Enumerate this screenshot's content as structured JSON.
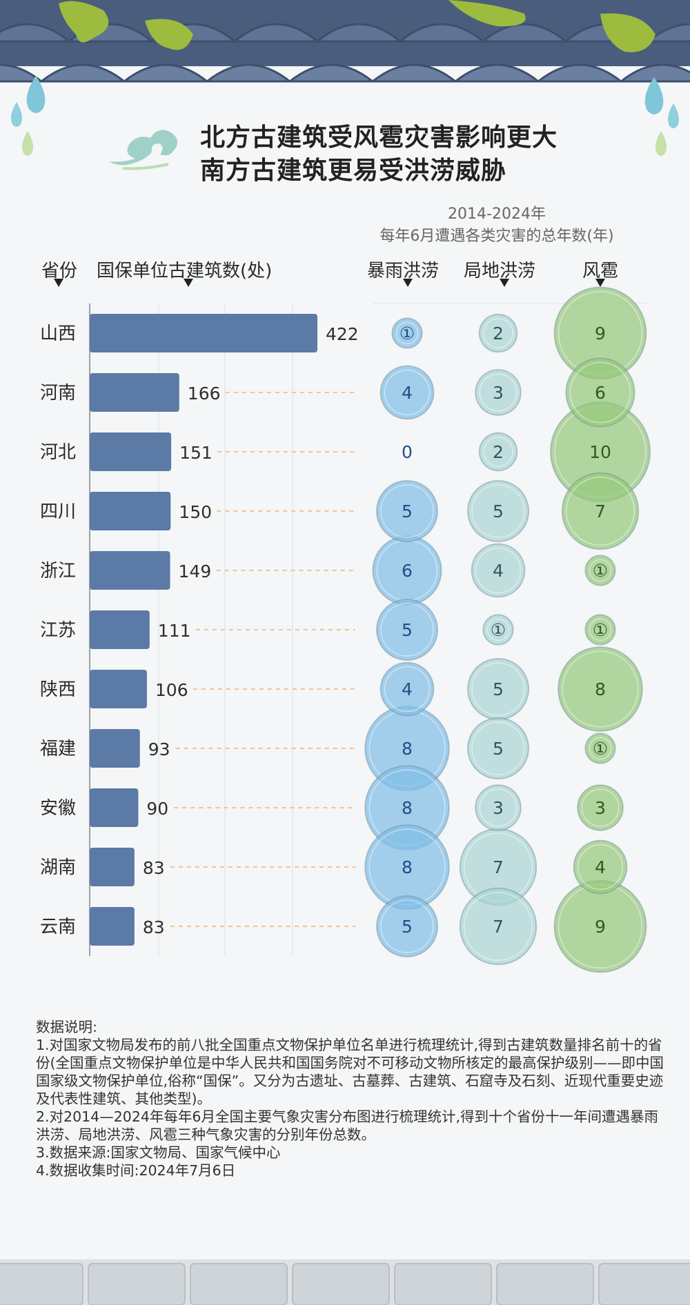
{
  "title_lines": [
    "北方古建筑受风雹灾害影响更大",
    "南方古建筑更易受洪涝威胁"
  ],
  "subtitle_period": "2014-2024年",
  "subtitle_desc": "每年6月遭遇各类灾害的总年数(年)",
  "headers": {
    "province": "省份",
    "count": "国保单位古建筑数(处)",
    "rainstorm": "暴雨洪涝",
    "local": "局地洪涝",
    "hail": "风雹"
  },
  "colors": {
    "bar": "#5b7aa6",
    "rainstorm": "#7fbde6",
    "local": "#a9d4d3",
    "hail": "#94c779",
    "dash": "#f2c58a"
  },
  "chart_data": {
    "type": "bar",
    "categories": [
      "山西",
      "河南",
      "河北",
      "四川",
      "浙江",
      "江苏",
      "陕西",
      "福建",
      "安徽",
      "湖南",
      "云南"
    ],
    "series": [
      {
        "name": "国保单位古建筑数(处)",
        "values": [
          422,
          166,
          151,
          150,
          149,
          111,
          106,
          93,
          90,
          83,
          83
        ]
      },
      {
        "name": "暴雨洪涝",
        "values": [
          1,
          4,
          0,
          5,
          6,
          5,
          4,
          8,
          8,
          8,
          5
        ]
      },
      {
        "name": "局地洪涝",
        "values": [
          2,
          3,
          2,
          5,
          4,
          1,
          5,
          5,
          3,
          7,
          7
        ]
      },
      {
        "name": "风雹",
        "values": [
          9,
          6,
          10,
          7,
          1,
          1,
          8,
          1,
          3,
          4,
          9
        ]
      }
    ],
    "value_labels": {
      "rainstorm": [
        "①",
        "4",
        "0",
        "5",
        "6",
        "5",
        "4",
        "8",
        "8",
        "8",
        "5"
      ],
      "local": [
        "2",
        "3",
        "2",
        "5",
        "4",
        "①",
        "5",
        "5",
        "3",
        "7",
        "7"
      ],
      "hail": [
        "9",
        "6",
        "10",
        "7",
        "①",
        "①",
        "8",
        "①",
        "3",
        "4",
        "9"
      ]
    }
  },
  "notes": [
    "数据说明:",
    "1.对国家文物局发布的前八批全国重点文物保护单位名单进行梳理统计,得到古建筑数量排名前十的省份(全国重点文物保护单位是中华人民共和国国务院对不可移动文物所核定的最高保护级别——即中国国家级文物保护单位,俗称“国保”。又分为古遗址、古墓葬、古建筑、石窟寺及石刻、近现代重要史迹及代表性建筑、其他类型)。",
    "2.对2014—2024年每年6月全国主要气象灾害分布图进行梳理统计,得到十个省份十一年间遭遇暴雨洪涝、局地洪涝、风雹三种气象灾害的分别年份总数。",
    "3.数据来源:国家文物局、国家气候中心",
    "4.数据收集时间:2024年7月6日"
  ]
}
